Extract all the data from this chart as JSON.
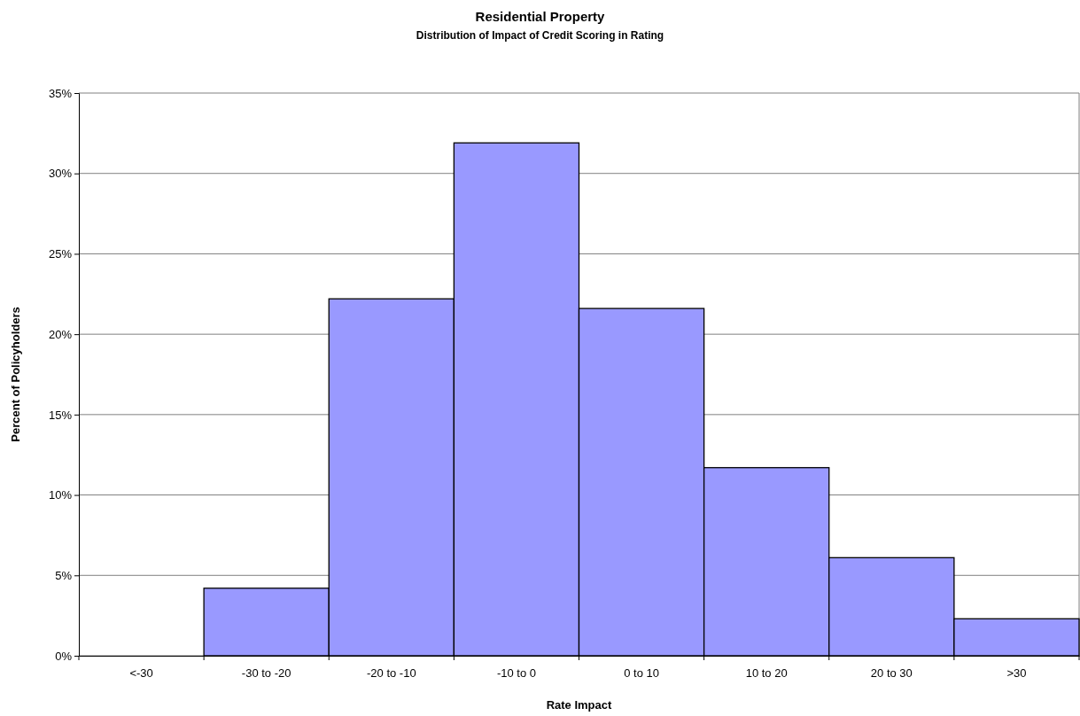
{
  "chart_data": {
    "type": "bar",
    "title": "Residential Property",
    "subtitle": "Distribution of Impact of Credit Scoring in Rating",
    "xlabel": "Rate Impact",
    "ylabel": "Percent of Policyholders",
    "categories": [
      "<-30",
      "-30 to -20",
      "-20 to -10",
      "-10 to 0",
      "0 to 10",
      "10 to 20",
      "20 to 30",
      ">30"
    ],
    "values": [
      0,
      4.2,
      22.2,
      31.9,
      21.6,
      11.7,
      6.1,
      2.3
    ],
    "color": "#9999ff",
    "ylim": [
      0,
      35
    ],
    "yticks": [
      {
        "value": 0,
        "label": "0%"
      },
      {
        "value": 5,
        "label": "5%"
      },
      {
        "value": 10,
        "label": "10%"
      },
      {
        "value": 15,
        "label": "15%"
      },
      {
        "value": 20,
        "label": "20%"
      },
      {
        "value": 25,
        "label": "25%"
      },
      {
        "value": 30,
        "label": "30%"
      },
      {
        "value": 35,
        "label": "35%"
      }
    ],
    "grid": "y"
  }
}
